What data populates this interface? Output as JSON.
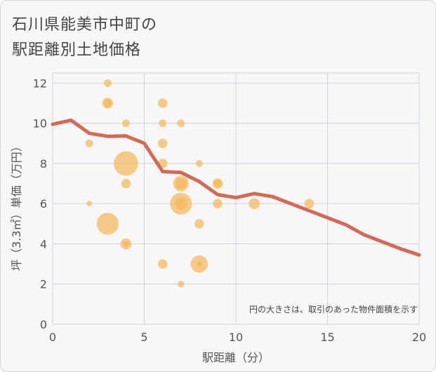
{
  "title_line1": "石川県能美市中町の",
  "title_line2": "駅距離別土地価格",
  "chart_data": {
    "type": "scatter",
    "xlabel": "駅距離（分）",
    "ylabel": "坪（3.3㎡）単価（万円）",
    "xlim": [
      0,
      20
    ],
    "ylim": [
      0,
      12.5
    ],
    "xticks": [
      "0",
      "5",
      "10",
      "15",
      "20"
    ],
    "yticks": [
      "0",
      "2",
      "4",
      "6",
      "8",
      "10",
      "12"
    ],
    "grid": true,
    "note": "円の大きさは、取引のあった物件面積を示す",
    "colors": {
      "bubble": "#f5b95a",
      "line": "#d46a55",
      "grid": "#c8d4de"
    },
    "bubbles": [
      {
        "x": 2,
        "y": 9,
        "size": 1
      },
      {
        "x": 2,
        "y": 6,
        "size": 0.5
      },
      {
        "x": 3,
        "y": 12,
        "size": 1
      },
      {
        "x": 3,
        "y": 11,
        "size": 2
      },
      {
        "x": 3,
        "y": 11,
        "size": 1
      },
      {
        "x": 3,
        "y": 5,
        "size": 8
      },
      {
        "x": 4,
        "y": 10,
        "size": 1
      },
      {
        "x": 4,
        "y": 8,
        "size": 10
      },
      {
        "x": 4,
        "y": 7,
        "size": 1.5
      },
      {
        "x": 4,
        "y": 4,
        "size": 2
      },
      {
        "x": 4,
        "y": 4,
        "size": 0.5
      },
      {
        "x": 6,
        "y": 11,
        "size": 1.5
      },
      {
        "x": 6,
        "y": 10,
        "size": 1
      },
      {
        "x": 6,
        "y": 9,
        "size": 1.5
      },
      {
        "x": 6,
        "y": 8,
        "size": 1.5
      },
      {
        "x": 6,
        "y": 3,
        "size": 1.5
      },
      {
        "x": 7,
        "y": 10,
        "size": 1
      },
      {
        "x": 7,
        "y": 7,
        "size": 4
      },
      {
        "x": 7,
        "y": 7,
        "size": 2
      },
      {
        "x": 7,
        "y": 6,
        "size": 8
      },
      {
        "x": 7,
        "y": 6,
        "size": 2.5
      },
      {
        "x": 7,
        "y": 2,
        "size": 0.7
      },
      {
        "x": 8,
        "y": 8,
        "size": 0.8
      },
      {
        "x": 8,
        "y": 5,
        "size": 1.5
      },
      {
        "x": 8,
        "y": 3,
        "size": 5
      },
      {
        "x": 8,
        "y": 3,
        "size": 0.5
      },
      {
        "x": 9,
        "y": 7,
        "size": 1.8
      },
      {
        "x": 9,
        "y": 7,
        "size": 1
      },
      {
        "x": 9,
        "y": 6,
        "size": 1.5
      },
      {
        "x": 11,
        "y": 6,
        "size": 2
      },
      {
        "x": 14,
        "y": 6,
        "size": 1.5
      }
    ],
    "line": {
      "x": [
        0,
        1,
        2,
        3,
        4,
        5,
        6,
        7,
        8,
        9,
        10,
        11,
        12,
        13,
        14,
        15,
        16,
        17,
        18,
        19,
        20
      ],
      "y": [
        9.95,
        10.15,
        9.5,
        9.35,
        9.37,
        9.0,
        7.6,
        7.55,
        7.1,
        6.45,
        6.3,
        6.5,
        6.35,
        6.0,
        5.65,
        5.3,
        4.95,
        4.45,
        4.1,
        3.75,
        3.45
      ]
    }
  }
}
